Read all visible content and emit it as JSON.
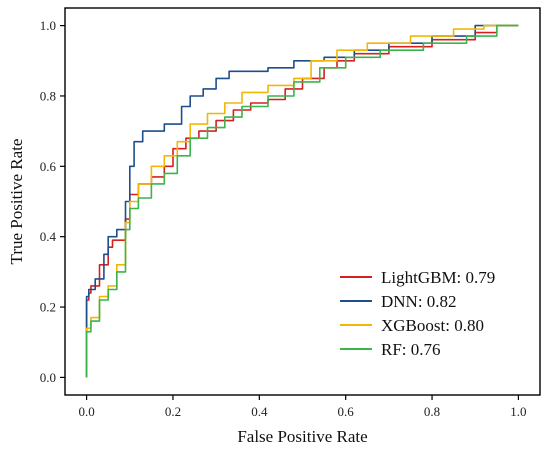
{
  "chart_data": {
    "type": "line",
    "title": "",
    "xlabel": "False Positive Rate",
    "ylabel": "True Positive Rate",
    "xlim": [
      -0.05,
      1.05
    ],
    "ylim": [
      -0.05,
      1.05
    ],
    "xticks": [
      0.0,
      0.2,
      0.4,
      0.6,
      0.8,
      1.0
    ],
    "yticks": [
      0.0,
      0.2,
      0.4,
      0.6,
      0.8,
      1.0
    ],
    "xtick_labels": [
      "0.0",
      "0.2",
      "0.4",
      "0.6",
      "0.8",
      "1.0"
    ],
    "ytick_labels": [
      "0.0",
      "0.2",
      "0.4",
      "0.6",
      "0.8",
      "1.0"
    ],
    "grid": false,
    "legend_position": "bottom-right",
    "series": [
      {
        "name": "LightGBM: 0.79",
        "color": "#d62020",
        "points": [
          [
            0,
            0
          ],
          [
            0.005,
            0.22
          ],
          [
            0.01,
            0.24
          ],
          [
            0.03,
            0.26
          ],
          [
            0.05,
            0.32
          ],
          [
            0.06,
            0.37
          ],
          [
            0.09,
            0.39
          ],
          [
            0.1,
            0.45
          ],
          [
            0.12,
            0.52
          ],
          [
            0.15,
            0.55
          ],
          [
            0.18,
            0.57
          ],
          [
            0.2,
            0.6
          ],
          [
            0.23,
            0.65
          ],
          [
            0.26,
            0.68
          ],
          [
            0.3,
            0.7
          ],
          [
            0.34,
            0.73
          ],
          [
            0.38,
            0.76
          ],
          [
            0.42,
            0.78
          ],
          [
            0.46,
            0.79
          ],
          [
            0.5,
            0.82
          ],
          [
            0.55,
            0.85
          ],
          [
            0.58,
            0.88
          ],
          [
            0.62,
            0.9
          ],
          [
            0.7,
            0.92
          ],
          [
            0.8,
            0.94
          ],
          [
            0.9,
            0.96
          ],
          [
            0.95,
            0.98
          ],
          [
            1.0,
            1.0
          ]
        ]
      },
      {
        "name": "DNN: 0.82",
        "color": "#1f4e8c",
        "points": [
          [
            0,
            0
          ],
          [
            0.005,
            0.23
          ],
          [
            0.02,
            0.25
          ],
          [
            0.04,
            0.28
          ],
          [
            0.05,
            0.35
          ],
          [
            0.07,
            0.4
          ],
          [
            0.09,
            0.42
          ],
          [
            0.1,
            0.5
          ],
          [
            0.11,
            0.6
          ],
          [
            0.13,
            0.67
          ],
          [
            0.18,
            0.7
          ],
          [
            0.22,
            0.72
          ],
          [
            0.24,
            0.77
          ],
          [
            0.27,
            0.8
          ],
          [
            0.3,
            0.82
          ],
          [
            0.33,
            0.85
          ],
          [
            0.36,
            0.87
          ],
          [
            0.42,
            0.87
          ],
          [
            0.48,
            0.88
          ],
          [
            0.55,
            0.9
          ],
          [
            0.62,
            0.91
          ],
          [
            0.7,
            0.93
          ],
          [
            0.8,
            0.95
          ],
          [
            0.9,
            0.97
          ],
          [
            1.0,
            1.0
          ]
        ]
      },
      {
        "name": "XGBoost: 0.80",
        "color": "#f2b705",
        "points": [
          [
            0,
            0
          ],
          [
            0.01,
            0.14
          ],
          [
            0.03,
            0.17
          ],
          [
            0.05,
            0.23
          ],
          [
            0.07,
            0.26
          ],
          [
            0.09,
            0.32
          ],
          [
            0.1,
            0.44
          ],
          [
            0.12,
            0.5
          ],
          [
            0.15,
            0.55
          ],
          [
            0.18,
            0.6
          ],
          [
            0.21,
            0.63
          ],
          [
            0.24,
            0.67
          ],
          [
            0.28,
            0.72
          ],
          [
            0.32,
            0.75
          ],
          [
            0.36,
            0.78
          ],
          [
            0.42,
            0.81
          ],
          [
            0.48,
            0.83
          ],
          [
            0.52,
            0.85
          ],
          [
            0.58,
            0.9
          ],
          [
            0.65,
            0.93
          ],
          [
            0.75,
            0.95
          ],
          [
            0.85,
            0.97
          ],
          [
            0.92,
            0.99
          ],
          [
            1.0,
            1.0
          ]
        ]
      },
      {
        "name": "RF: 0.76",
        "color": "#3cb44b",
        "points": [
          [
            0,
            0
          ],
          [
            0.01,
            0.13
          ],
          [
            0.03,
            0.16
          ],
          [
            0.05,
            0.22
          ],
          [
            0.07,
            0.25
          ],
          [
            0.09,
            0.3
          ],
          [
            0.1,
            0.42
          ],
          [
            0.12,
            0.48
          ],
          [
            0.15,
            0.51
          ],
          [
            0.18,
            0.55
          ],
          [
            0.21,
            0.58
          ],
          [
            0.24,
            0.63
          ],
          [
            0.28,
            0.68
          ],
          [
            0.32,
            0.71
          ],
          [
            0.36,
            0.74
          ],
          [
            0.42,
            0.77
          ],
          [
            0.48,
            0.8
          ],
          [
            0.54,
            0.84
          ],
          [
            0.6,
            0.88
          ],
          [
            0.68,
            0.91
          ],
          [
            0.78,
            0.93
          ],
          [
            0.88,
            0.95
          ],
          [
            0.95,
            0.97
          ],
          [
            1.0,
            1.0
          ]
        ]
      }
    ]
  }
}
